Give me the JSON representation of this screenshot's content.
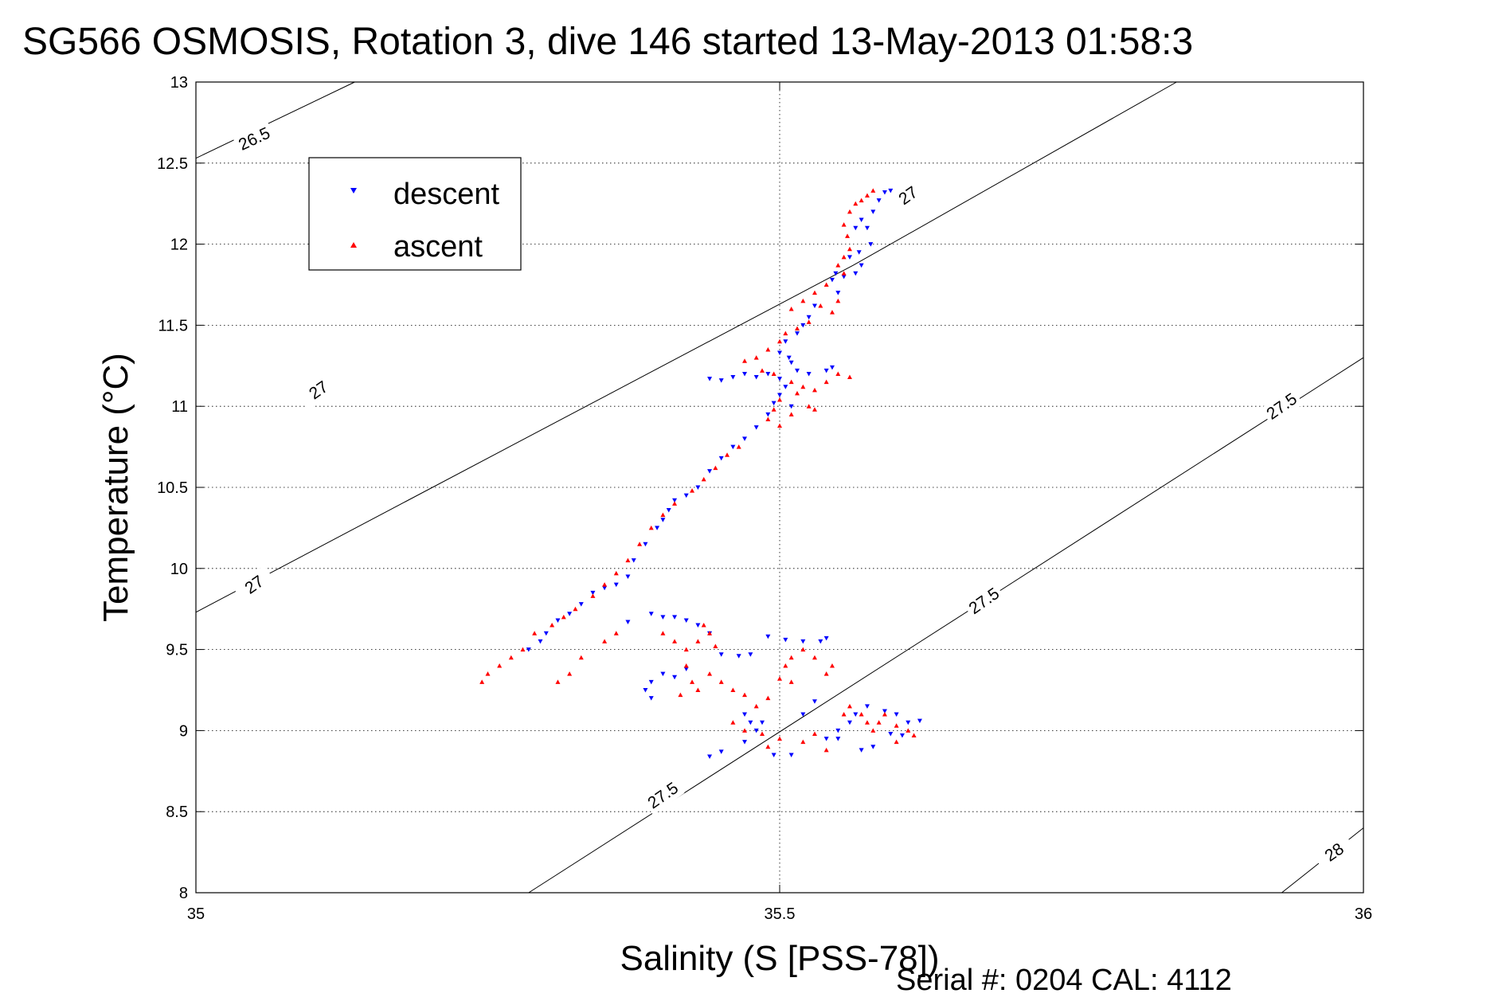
{
  "chart_data": {
    "type": "scatter",
    "title": "SG566 OSMOSIS, Rotation 3, dive 146 started 13-May-2013 01:58:3",
    "xlabel": "Salinity (S [PSS-78])",
    "ylabel": "Temperature (°C)",
    "xlim": [
      35,
      36
    ],
    "ylim": [
      8,
      13
    ],
    "x_ticks": [
      "35",
      "35.5",
      "36"
    ],
    "y_ticks": [
      "8",
      "8.5",
      "9",
      "9.5",
      "10",
      "10.5",
      "11",
      "11.5",
      "12",
      "12.5",
      "13"
    ],
    "grid": true,
    "legend_position": "top-left",
    "footer": "Serial #: 0204  CAL: 4112",
    "density_contours": [
      {
        "label": "26.5",
        "points": [
          [
            35.0,
            12.53
          ],
          [
            35.136,
            13.0
          ]
        ]
      },
      {
        "label": "27",
        "points": [
          [
            35.0,
            9.73
          ],
          [
            35.563,
            11.87
          ],
          [
            35.84,
            13.0
          ]
        ]
      },
      {
        "label": "27.5",
        "points": [
          [
            35.285,
            8.0
          ],
          [
            36.0,
            11.3
          ]
        ]
      },
      {
        "label": "28",
        "points": [
          [
            35.93,
            8.0
          ],
          [
            36.0,
            8.4
          ]
        ]
      }
    ],
    "contour_label_positions": [
      {
        "label": "26.5",
        "x": 35.05,
        "y": 12.65,
        "angle": -25
      },
      {
        "label": "27",
        "x": 35.105,
        "y": 11.1,
        "angle": -35
      },
      {
        "label": "27",
        "x": 35.05,
        "y": 9.9,
        "angle": -35
      },
      {
        "label": "27",
        "x": 35.61,
        "y": 12.3,
        "angle": -35
      },
      {
        "label": "27.5",
        "x": 35.4,
        "y": 8.6,
        "angle": -35
      },
      {
        "label": "27.5",
        "x": 35.675,
        "y": 9.8,
        "angle": -35
      },
      {
        "label": "27.5",
        "x": 35.93,
        "y": 11.0,
        "angle": -35
      },
      {
        "label": "28",
        "x": 35.975,
        "y": 8.25,
        "angle": -35
      }
    ],
    "series": [
      {
        "name": "descent",
        "color": "#0000ff",
        "marker": "triangle-down",
        "points": [
          [
            35.595,
            12.33
          ],
          [
            35.59,
            12.32
          ],
          [
            35.585,
            12.27
          ],
          [
            35.58,
            12.2
          ],
          [
            35.57,
            12.15
          ],
          [
            35.565,
            12.1
          ],
          [
            35.575,
            12.1
          ],
          [
            35.578,
            12.0
          ],
          [
            35.568,
            11.95
          ],
          [
            35.56,
            11.92
          ],
          [
            35.57,
            11.87
          ],
          [
            35.565,
            11.82
          ],
          [
            35.555,
            11.8
          ],
          [
            35.548,
            11.82
          ],
          [
            35.545,
            11.78
          ],
          [
            35.55,
            11.7
          ],
          [
            35.53,
            11.62
          ],
          [
            35.525,
            11.55
          ],
          [
            35.52,
            11.5
          ],
          [
            35.515,
            11.45
          ],
          [
            35.505,
            11.4
          ],
          [
            35.5,
            11.33
          ],
          [
            35.508,
            11.3
          ],
          [
            35.51,
            11.27
          ],
          [
            35.515,
            11.22
          ],
          [
            35.525,
            11.2
          ],
          [
            35.54,
            11.22
          ],
          [
            35.545,
            11.24
          ],
          [
            35.44,
            11.17
          ],
          [
            35.45,
            11.16
          ],
          [
            35.46,
            11.18
          ],
          [
            35.47,
            11.2
          ],
          [
            35.48,
            11.18
          ],
          [
            35.49,
            11.2
          ],
          [
            35.5,
            11.17
          ],
          [
            35.505,
            11.12
          ],
          [
            35.5,
            11.07
          ],
          [
            35.495,
            11.02
          ],
          [
            35.51,
            11.0
          ],
          [
            35.49,
            10.95
          ],
          [
            35.48,
            10.87
          ],
          [
            35.47,
            10.8
          ],
          [
            35.46,
            10.75
          ],
          [
            35.45,
            10.68
          ],
          [
            35.44,
            10.6
          ],
          [
            35.43,
            10.5
          ],
          [
            35.42,
            10.45
          ],
          [
            35.41,
            10.42
          ],
          [
            35.405,
            10.36
          ],
          [
            35.4,
            10.3
          ],
          [
            35.395,
            10.25
          ],
          [
            35.385,
            10.15
          ],
          [
            35.375,
            10.05
          ],
          [
            35.37,
            9.95
          ],
          [
            35.36,
            9.9
          ],
          [
            35.35,
            9.88
          ],
          [
            35.34,
            9.85
          ],
          [
            35.33,
            9.78
          ],
          [
            35.32,
            9.72
          ],
          [
            35.31,
            9.68
          ],
          [
            35.3,
            9.6
          ],
          [
            35.295,
            9.55
          ],
          [
            35.285,
            9.5
          ],
          [
            35.39,
            9.72
          ],
          [
            35.4,
            9.7
          ],
          [
            35.41,
            9.7
          ],
          [
            35.42,
            9.68
          ],
          [
            35.43,
            9.65
          ],
          [
            35.44,
            9.6
          ],
          [
            35.37,
            9.67
          ],
          [
            35.49,
            9.58
          ],
          [
            35.505,
            9.56
          ],
          [
            35.52,
            9.55
          ],
          [
            35.535,
            9.55
          ],
          [
            35.54,
            9.57
          ],
          [
            35.45,
            9.47
          ],
          [
            35.465,
            9.46
          ],
          [
            35.475,
            9.47
          ],
          [
            35.4,
            9.35
          ],
          [
            35.41,
            9.33
          ],
          [
            35.39,
            9.3
          ],
          [
            35.385,
            9.25
          ],
          [
            35.39,
            9.2
          ],
          [
            35.42,
            9.38
          ],
          [
            35.47,
            9.1
          ],
          [
            35.475,
            9.05
          ],
          [
            35.48,
            9.0
          ],
          [
            35.485,
            9.05
          ],
          [
            35.47,
            8.93
          ],
          [
            35.45,
            8.87
          ],
          [
            35.44,
            8.84
          ],
          [
            35.495,
            8.85
          ],
          [
            35.51,
            8.85
          ],
          [
            35.54,
            8.95
          ],
          [
            35.55,
            9.0
          ],
          [
            35.56,
            9.05
          ],
          [
            35.575,
            9.15
          ],
          [
            35.59,
            9.12
          ],
          [
            35.6,
            9.1
          ],
          [
            35.61,
            9.05
          ],
          [
            35.62,
            9.06
          ],
          [
            35.595,
            8.98
          ],
          [
            35.605,
            8.97
          ],
          [
            35.58,
            8.9
          ],
          [
            35.57,
            8.88
          ],
          [
            35.565,
            9.1
          ],
          [
            35.55,
            8.95
          ],
          [
            35.53,
            9.18
          ],
          [
            35.52,
            9.1
          ]
        ]
      },
      {
        "name": "ascent",
        "color": "#ff0000",
        "marker": "triangle-up",
        "points": [
          [
            35.58,
            12.33
          ],
          [
            35.575,
            12.3
          ],
          [
            35.57,
            12.27
          ],
          [
            35.565,
            12.25
          ],
          [
            35.56,
            12.2
          ],
          [
            35.555,
            12.12
          ],
          [
            35.558,
            12.05
          ],
          [
            35.56,
            11.97
          ],
          [
            35.555,
            11.92
          ],
          [
            35.55,
            11.87
          ],
          [
            35.555,
            11.82
          ],
          [
            35.54,
            11.75
          ],
          [
            35.53,
            11.7
          ],
          [
            35.52,
            11.65
          ],
          [
            35.51,
            11.6
          ],
          [
            35.535,
            11.62
          ],
          [
            35.545,
            11.58
          ],
          [
            35.55,
            11.65
          ],
          [
            35.525,
            11.52
          ],
          [
            35.515,
            11.48
          ],
          [
            35.505,
            11.45
          ],
          [
            35.5,
            11.4
          ],
          [
            35.49,
            11.35
          ],
          [
            35.48,
            11.3
          ],
          [
            35.47,
            11.28
          ],
          [
            35.485,
            11.22
          ],
          [
            35.495,
            11.2
          ],
          [
            35.51,
            11.15
          ],
          [
            35.52,
            11.12
          ],
          [
            35.53,
            11.1
          ],
          [
            35.54,
            11.15
          ],
          [
            35.55,
            11.2
          ],
          [
            35.56,
            11.18
          ],
          [
            35.515,
            11.08
          ],
          [
            35.5,
            11.04
          ],
          [
            35.495,
            10.98
          ],
          [
            35.49,
            10.92
          ],
          [
            35.5,
            10.88
          ],
          [
            35.51,
            10.95
          ],
          [
            35.525,
            11.0
          ],
          [
            35.53,
            10.98
          ],
          [
            35.465,
            10.75
          ],
          [
            35.455,
            10.7
          ],
          [
            35.445,
            10.62
          ],
          [
            35.435,
            10.55
          ],
          [
            35.425,
            10.48
          ],
          [
            35.41,
            10.4
          ],
          [
            35.4,
            10.33
          ],
          [
            35.39,
            10.25
          ],
          [
            35.38,
            10.15
          ],
          [
            35.37,
            10.05
          ],
          [
            35.36,
            9.97
          ],
          [
            35.35,
            9.9
          ],
          [
            35.34,
            9.83
          ],
          [
            35.325,
            9.75
          ],
          [
            35.315,
            9.7
          ],
          [
            35.305,
            9.65
          ],
          [
            35.29,
            9.6
          ],
          [
            35.28,
            9.5
          ],
          [
            35.27,
            9.45
          ],
          [
            35.26,
            9.4
          ],
          [
            35.25,
            9.35
          ],
          [
            35.245,
            9.3
          ],
          [
            35.31,
            9.3
          ],
          [
            35.32,
            9.35
          ],
          [
            35.33,
            9.45
          ],
          [
            35.35,
            9.55
          ],
          [
            35.36,
            9.6
          ],
          [
            35.4,
            9.6
          ],
          [
            35.41,
            9.55
          ],
          [
            35.42,
            9.5
          ],
          [
            35.43,
            9.55
          ],
          [
            35.435,
            9.65
          ],
          [
            35.44,
            9.6
          ],
          [
            35.445,
            9.52
          ],
          [
            35.42,
            9.4
          ],
          [
            35.425,
            9.3
          ],
          [
            35.415,
            9.22
          ],
          [
            35.43,
            9.25
          ],
          [
            35.44,
            9.35
          ],
          [
            35.45,
            9.3
          ],
          [
            35.46,
            9.25
          ],
          [
            35.47,
            9.22
          ],
          [
            35.48,
            9.15
          ],
          [
            35.49,
            9.2
          ],
          [
            35.5,
            9.32
          ],
          [
            35.505,
            9.4
          ],
          [
            35.51,
            9.45
          ],
          [
            35.52,
            9.5
          ],
          [
            35.53,
            9.45
          ],
          [
            35.54,
            9.35
          ],
          [
            35.545,
            9.4
          ],
          [
            35.46,
            9.05
          ],
          [
            35.47,
            9.0
          ],
          [
            35.485,
            8.98
          ],
          [
            35.49,
            8.9
          ],
          [
            35.5,
            8.95
          ],
          [
            35.52,
            8.93
          ],
          [
            35.53,
            8.98
          ],
          [
            35.555,
            9.1
          ],
          [
            35.56,
            9.15
          ],
          [
            35.57,
            9.1
          ],
          [
            35.575,
            9.05
          ],
          [
            35.58,
            9.0
          ],
          [
            35.585,
            9.05
          ],
          [
            35.59,
            9.1
          ],
          [
            35.6,
            9.03
          ],
          [
            35.61,
            9.0
          ],
          [
            35.615,
            8.97
          ],
          [
            35.6,
            8.93
          ],
          [
            35.54,
            8.88
          ],
          [
            35.51,
            9.3
          ]
        ]
      }
    ]
  }
}
